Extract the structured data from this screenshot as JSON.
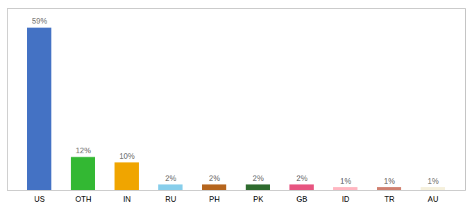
{
  "chart_data": {
    "type": "bar",
    "categories": [
      "US",
      "OTH",
      "IN",
      "RU",
      "PH",
      "PK",
      "GB",
      "ID",
      "TR",
      "AU"
    ],
    "values": [
      59,
      12,
      10,
      2,
      2,
      2,
      2,
      1,
      1,
      1
    ],
    "value_labels": [
      "59%",
      "12%",
      "10%",
      "2%",
      "2%",
      "2%",
      "2%",
      "1%",
      "1%",
      "1%"
    ],
    "colors": [
      "#4472c4",
      "#33b833",
      "#f0a500",
      "#87ceeb",
      "#b5651d",
      "#2e6b2e",
      "#e75480",
      "#ffb6c1",
      "#d08070",
      "#f5f0dc"
    ],
    "ylim": [
      0,
      66
    ],
    "data_labels": true,
    "tick_labels": "x",
    "grid": false
  }
}
